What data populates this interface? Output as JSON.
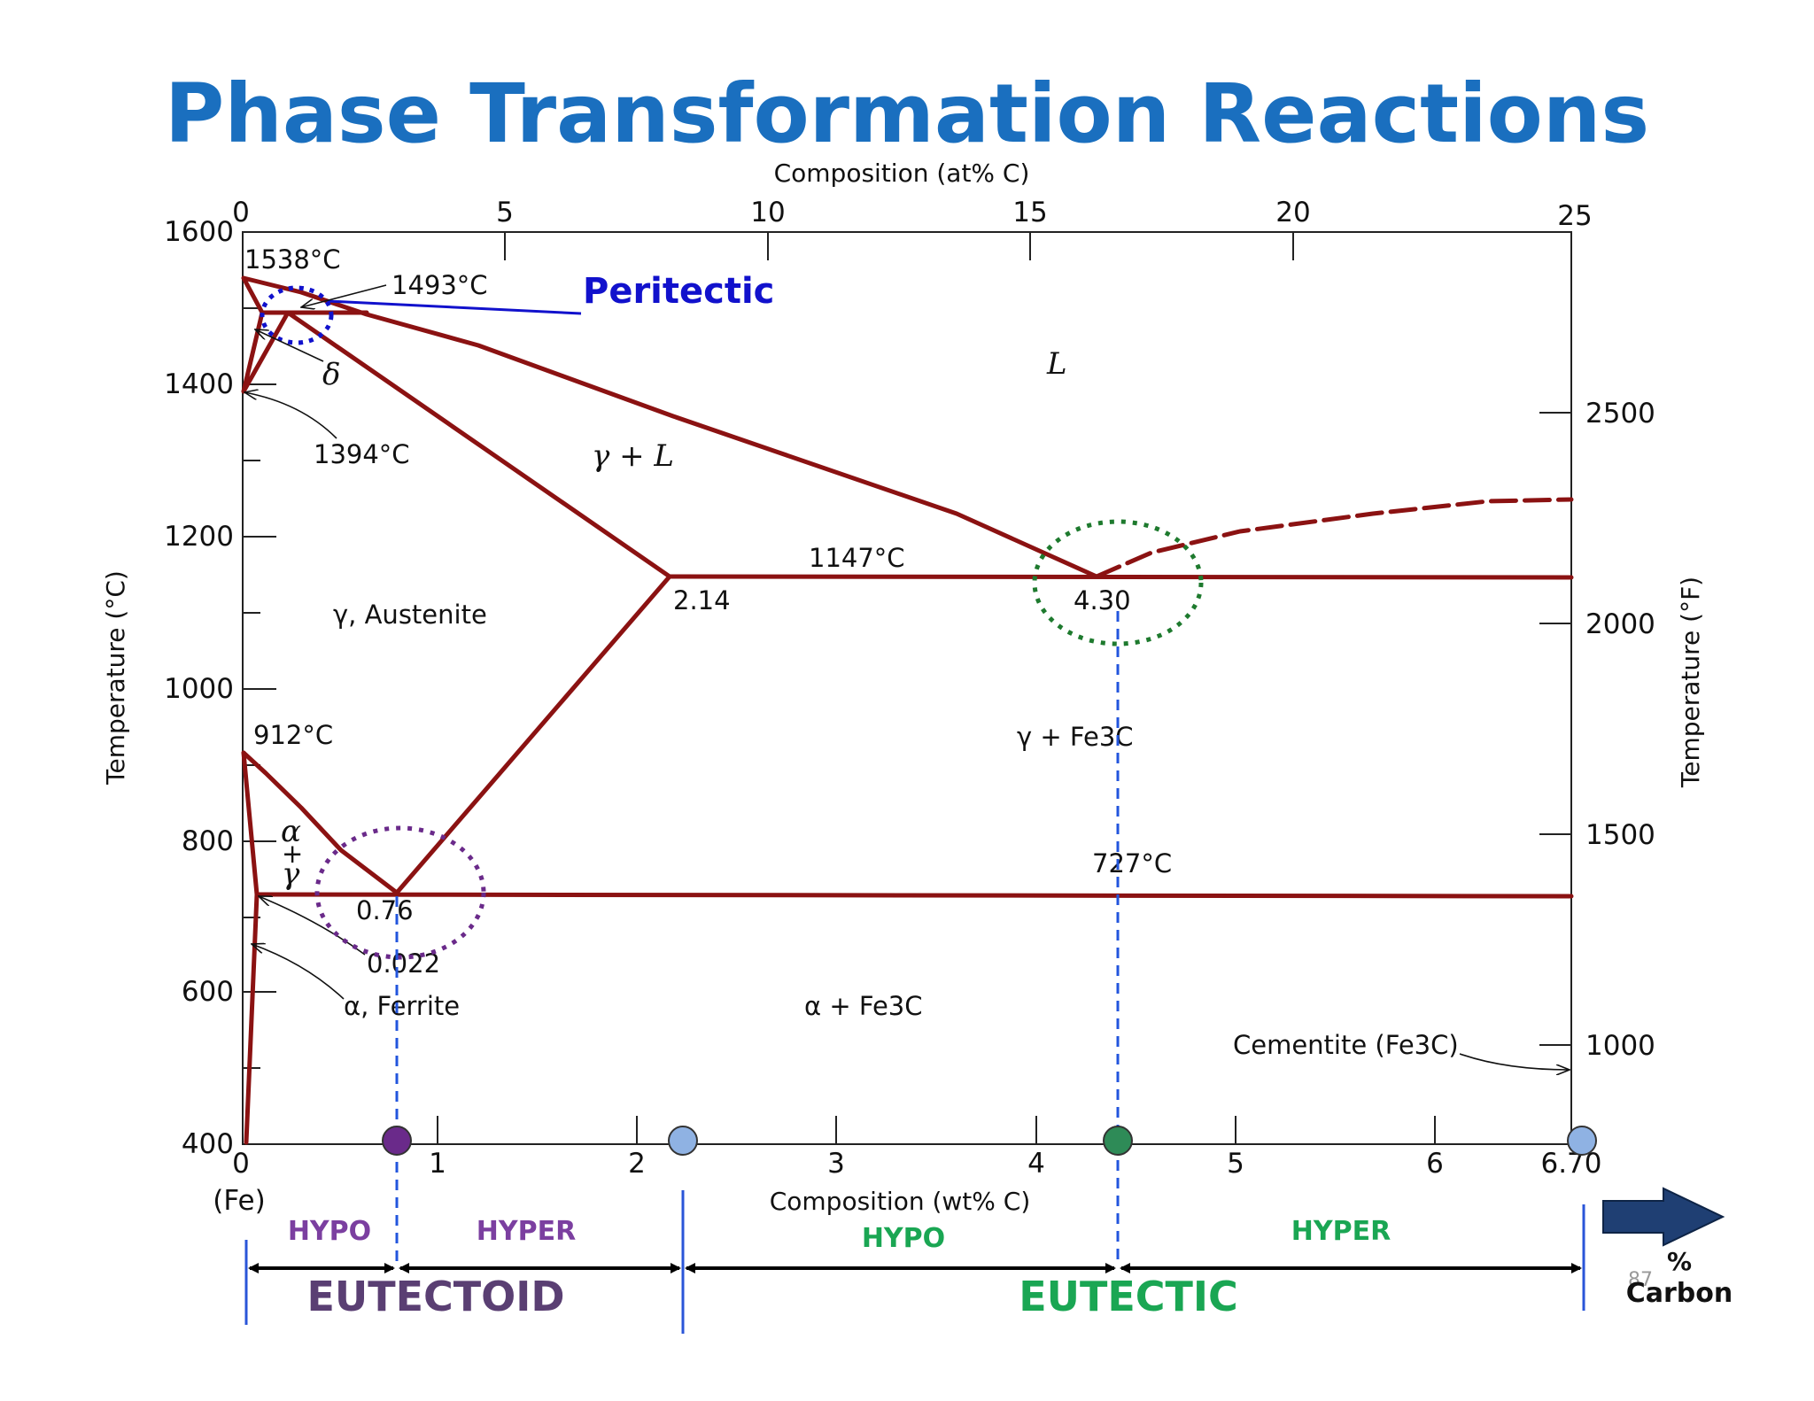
{
  "title": "Phase Transformation Reactions",
  "top_axis": {
    "label": "Composition (at% C)",
    "ticks": [
      "0",
      "5",
      "10",
      "15",
      "20",
      "25"
    ]
  },
  "bottom_axis": {
    "label": "Composition (wt% C)",
    "ticks": [
      "0",
      "1",
      "2",
      "3",
      "4",
      "5",
      "6",
      "6.70"
    ],
    "origin_label": "(Fe)"
  },
  "left_axis": {
    "label": "Temperature (°C)",
    "ticks": [
      "1600",
      "1400",
      "1200",
      "1000",
      "800",
      "600",
      "400"
    ]
  },
  "right_axis": {
    "label": "Temperature (°F)",
    "ticks": [
      "2500",
      "2000",
      "1500",
      "1000"
    ]
  },
  "annotations": {
    "t1538": "1538°C",
    "t1493": "1493°C",
    "peritectic": "Peritectic",
    "delta": "δ",
    "t1394": "1394°C",
    "liquid": "L",
    "gamma_l": "γ + L",
    "t1147": "1147°C",
    "c214": "2.14",
    "c430": "4.30",
    "austenite": "γ, Austenite",
    "t912": "912°C",
    "gamma_fe3c": "γ + Fe3C",
    "alpha_gamma_a": "α",
    "alpha_gamma_plus": "+",
    "alpha_gamma_g": "γ",
    "t727": "727°C",
    "c076": "0.76",
    "c0022": "0.022",
    "ferrite": "α, Ferrite",
    "alpha_fe3c": "α + Fe3C",
    "cementite": "Cementite (Fe3C)"
  },
  "regions": {
    "eutectoid_hypo": "HYPO",
    "eutectoid_hyper": "HYPER",
    "eutectic_hypo": "HYPO",
    "eutectic_hyper": "HYPER",
    "eutectoid": "EUTECTOID",
    "eutectic": "EUTECTIC"
  },
  "arrow_label": {
    "line1": "%",
    "line2": "Carbon"
  },
  "page_number": "87",
  "colors": {
    "title": "#1a6fbf",
    "phase_lines": "#8b1212",
    "peritectic": "#1111cc",
    "eutectoid": "#6a2a8a",
    "eutectoid_name": "#5a3f73",
    "eutectic": "#1aa653",
    "eutectic_circle": "#1e7a2e",
    "marker_blue": "#8fb2e3",
    "marker_purple": "#6a2a8a",
    "marker_green": "#2e8b57",
    "dash_blue": "#2255dd",
    "arrow": "#1f3f73"
  }
}
